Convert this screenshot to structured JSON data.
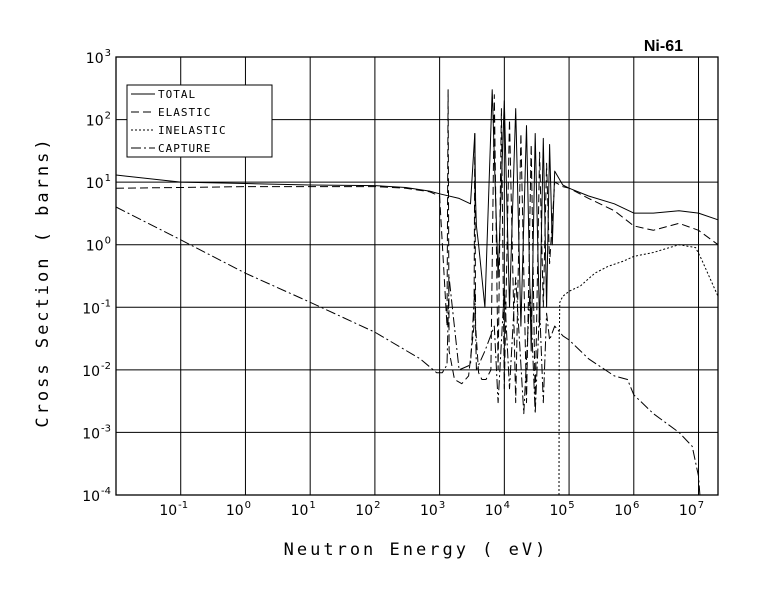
{
  "chart_data": {
    "type": "line",
    "title": "Ni-61",
    "xlabel": "Neutron Energy ( eV)",
    "ylabel": "Cross Section ( barns)",
    "x_scale": "log",
    "y_scale": "log",
    "xlim": [
      0.01,
      20000000
    ],
    "ylim": [
      0.0001,
      1000
    ],
    "grid": true,
    "legend_position": "top-left",
    "x_ticks": [
      {
        "value": 0.1,
        "base": "10",
        "exp": "-1"
      },
      {
        "value": 1,
        "base": "10",
        "exp": "0"
      },
      {
        "value": 10,
        "base": "10",
        "exp": "1"
      },
      {
        "value": 100,
        "base": "10",
        "exp": "2"
      },
      {
        "value": 1000,
        "base": "10",
        "exp": "3"
      },
      {
        "value": 10000,
        "base": "10",
        "exp": "4"
      },
      {
        "value": 100000,
        "base": "10",
        "exp": "5"
      },
      {
        "value": 1000000,
        "base": "10",
        "exp": "6"
      },
      {
        "value": 10000000,
        "base": "10",
        "exp": "7"
      }
    ],
    "y_ticks": [
      {
        "value": 0.0001,
        "base": "10",
        "exp": "-4"
      },
      {
        "value": 0.001,
        "base": "10",
        "exp": "-3"
      },
      {
        "value": 0.01,
        "base": "10",
        "exp": "-2"
      },
      {
        "value": 0.1,
        "base": "10",
        "exp": "-1"
      },
      {
        "value": 1,
        "base": "10",
        "exp": "0"
      },
      {
        "value": 10,
        "base": "10",
        "exp": "1"
      },
      {
        "value": 100,
        "base": "10",
        "exp": "2"
      },
      {
        "value": 1000,
        "base": "10",
        "exp": "3"
      }
    ],
    "series": [
      {
        "name": "TOTAL",
        "dash": "",
        "x": [
          0.01,
          0.1,
          1,
          10,
          100,
          300,
          700,
          1000,
          2000,
          3000,
          3500,
          3600,
          3700,
          4000,
          5000,
          6500,
          8000,
          10000,
          12000,
          15000,
          18000,
          22000,
          26000,
          30000,
          35000,
          40000,
          45000,
          50000,
          55000,
          60000,
          80000,
          100000,
          200000,
          500000,
          1000000,
          2000000,
          5000000,
          10000000,
          20000000
        ],
        "y": [
          13,
          10,
          9.5,
          9,
          8.8,
          8.2,
          7.2,
          6.5,
          5.5,
          4.5,
          60,
          5,
          2,
          1,
          0.1,
          300,
          0.3,
          200,
          0.1,
          150,
          0.05,
          80,
          0.02,
          60,
          0.05,
          50,
          0.1,
          40,
          1,
          15,
          9,
          8,
          6,
          4.5,
          3.2,
          3.2,
          3.5,
          3.2,
          2.5
        ]
      },
      {
        "name": "ELASTIC",
        "dash": "8,4",
        "x": [
          0.01,
          0.1,
          1,
          10,
          100,
          300,
          700,
          1000,
          1300,
          1350,
          1400,
          1700,
          2200,
          2800,
          3400,
          3500,
          3600,
          4000,
          4500,
          5200,
          6200,
          7000,
          8000,
          9000,
          10000,
          12000,
          15000,
          18000,
          22000,
          26000,
          30000,
          35000,
          40000,
          45000,
          50000,
          60000,
          80000,
          100000,
          200000,
          500000,
          1000000,
          2000000,
          5000000,
          10000000,
          20000000
        ],
        "y": [
          8,
          8.2,
          8.5,
          8.5,
          8.5,
          8,
          7,
          6,
          0.05,
          300,
          0.02,
          0.007,
          0.006,
          0.008,
          0.05,
          60,
          0.05,
          0.009,
          0.007,
          0.007,
          0.01,
          250,
          0.01,
          150,
          0.005,
          100,
          0.003,
          60,
          0.003,
          40,
          0.003,
          30,
          0.1,
          20,
          0.5,
          10,
          8.5,
          8,
          5.5,
          3.5,
          2,
          1.7,
          2.2,
          1.7,
          1
        ]
      },
      {
        "name": "INELASTIC",
        "dash": "2,2",
        "x": [
          70000,
          70500,
          72000,
          80000,
          100000,
          150000,
          250000,
          400000,
          700000,
          1000000,
          2000000,
          5000000,
          9000000,
          11000000,
          20000000
        ],
        "y": [
          0.0001,
          0.03,
          0.12,
          0.15,
          0.18,
          0.22,
          0.35,
          0.45,
          0.55,
          0.65,
          0.75,
          1.0,
          0.9,
          0.6,
          0.15
        ]
      },
      {
        "name": "CAPTURE",
        "dash": "10,3,2,3",
        "x": [
          0.01,
          0.1,
          1,
          10,
          100,
          500,
          900,
          1100,
          1300,
          1400,
          2000,
          3000,
          3500,
          3700,
          5000,
          7000,
          8000,
          10000,
          12000,
          15000,
          20000,
          25000,
          30000,
          35000,
          40000,
          45000,
          50000,
          60000,
          80000,
          100000,
          200000,
          500000,
          800000,
          1000000,
          2000000,
          5000000,
          8000000,
          10000000,
          10500000
        ],
        "y": [
          4,
          1.2,
          0.35,
          0.12,
          0.04,
          0.015,
          0.009,
          0.009,
          0.012,
          0.3,
          0.01,
          0.012,
          0.2,
          0.01,
          0.02,
          0.05,
          0.003,
          0.2,
          0.005,
          0.3,
          0.002,
          0.2,
          0.002,
          0.1,
          0.003,
          0.08,
          0.03,
          0.05,
          0.035,
          0.03,
          0.015,
          0.008,
          0.007,
          0.004,
          0.002,
          0.001,
          0.0006,
          0.0002,
          0.0001
        ]
      }
    ]
  }
}
